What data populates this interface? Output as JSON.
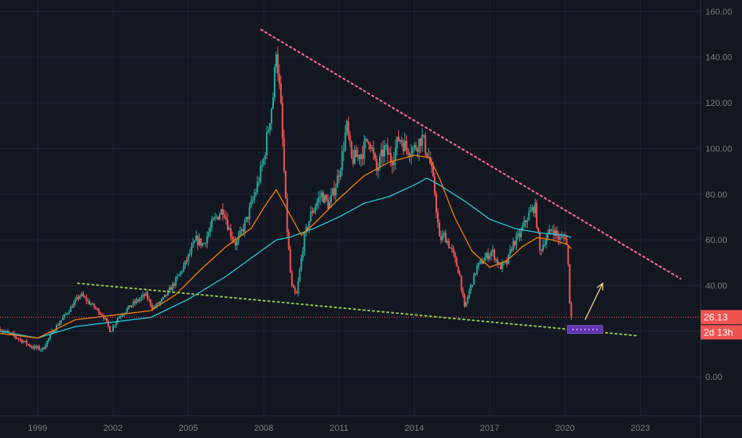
{
  "chart_data": {
    "type": "candlestick",
    "title": "",
    "xlabel": "",
    "ylabel": "",
    "ylim": [
      -17,
      165
    ],
    "xlim": [
      1997.5,
      2025.4
    ],
    "y_ticks": [
      "160.00",
      "140.00",
      "120.00",
      "100.00",
      "80.00",
      "60.00",
      "40.00",
      "0.00"
    ],
    "y_tick_values": [
      160,
      140,
      120,
      100,
      80,
      60,
      40,
      0
    ],
    "x_ticks": [
      "1999",
      "2002",
      "2005",
      "2008",
      "2011",
      "2014",
      "2017",
      "2020",
      "2023"
    ],
    "x_tick_values": [
      1999,
      2002,
      2005,
      2008,
      2011,
      2014,
      2017,
      2020,
      2023
    ],
    "grid": true,
    "last_price": "26.13",
    "countdown": "2d 13h",
    "colors": {
      "background": "#131722",
      "up": "#26a69a",
      "down": "#ef5350",
      "ma_fast": "#f57c00",
      "ma_slow": "#26c6da",
      "resistance": "#f06292",
      "support": "#8bc34a",
      "price_line": "#ef5350",
      "arrow": "#ffe082",
      "box": "#5e35b1"
    },
    "price_path": [
      [
        1997.5,
        21
      ],
      [
        1998.2,
        17
      ],
      [
        1998.8,
        13
      ],
      [
        1999.2,
        12
      ],
      [
        1999.6,
        20
      ],
      [
        2000.3,
        30
      ],
      [
        2000.7,
        36
      ],
      [
        2001.2,
        31
      ],
      [
        2001.6,
        27
      ],
      [
        2001.9,
        20
      ],
      [
        2002.2,
        26
      ],
      [
        2002.8,
        32
      ],
      [
        2003.3,
        36
      ],
      [
        2003.6,
        30
      ],
      [
        2004.0,
        34
      ],
      [
        2004.5,
        42
      ],
      [
        2004.9,
        50
      ],
      [
        2005.3,
        60
      ],
      [
        2005.6,
        58
      ],
      [
        2006.0,
        68
      ],
      [
        2006.4,
        74
      ],
      [
        2006.6,
        65
      ],
      [
        2006.9,
        58
      ],
      [
        2007.3,
        68
      ],
      [
        2007.7,
        82
      ],
      [
        2008.0,
        95
      ],
      [
        2008.2,
        110
      ],
      [
        2008.4,
        125
      ],
      [
        2008.5,
        145
      ],
      [
        2008.7,
        115
      ],
      [
        2008.9,
        70
      ],
      [
        2009.1,
        40
      ],
      [
        2009.3,
        35
      ],
      [
        2009.6,
        60
      ],
      [
        2009.9,
        72
      ],
      [
        2010.3,
        80
      ],
      [
        2010.6,
        75
      ],
      [
        2010.9,
        85
      ],
      [
        2011.1,
        95
      ],
      [
        2011.3,
        110
      ],
      [
        2011.5,
        95
      ],
      [
        2011.9,
        98
      ],
      [
        2012.2,
        105
      ],
      [
        2012.5,
        90
      ],
      [
        2012.8,
        100
      ],
      [
        2013.1,
        95
      ],
      [
        2013.4,
        105
      ],
      [
        2013.7,
        100
      ],
      [
        2014.0,
        100
      ],
      [
        2014.3,
        105
      ],
      [
        2014.6,
        95
      ],
      [
        2014.8,
        82
      ],
      [
        2015.0,
        60
      ],
      [
        2015.2,
        62
      ],
      [
        2015.5,
        55
      ],
      [
        2015.8,
        45
      ],
      [
        2016.0,
        30
      ],
      [
        2016.2,
        38
      ],
      [
        2016.5,
        48
      ],
      [
        2016.8,
        52
      ],
      [
        2017.1,
        55
      ],
      [
        2017.4,
        48
      ],
      [
        2017.7,
        50
      ],
      [
        2017.9,
        58
      ],
      [
        2018.2,
        62
      ],
      [
        2018.5,
        70
      ],
      [
        2018.8,
        75
      ],
      [
        2019.0,
        55
      ],
      [
        2019.2,
        60
      ],
      [
        2019.5,
        65
      ],
      [
        2019.8,
        60
      ],
      [
        2020.0,
        62
      ],
      [
        2020.1,
        55
      ],
      [
        2020.2,
        30
      ],
      [
        2020.25,
        26
      ]
    ],
    "ma_fast_path": [
      [
        1997.5,
        19
      ],
      [
        1999.0,
        17
      ],
      [
        2000.5,
        25
      ],
      [
        2002.0,
        27
      ],
      [
        2003.5,
        29
      ],
      [
        2004.5,
        36
      ],
      [
        2005.5,
        47
      ],
      [
        2006.5,
        57
      ],
      [
        2007.5,
        65
      ],
      [
        2008.0,
        74
      ],
      [
        2008.5,
        82
      ],
      [
        2009.0,
        72
      ],
      [
        2009.5,
        62
      ],
      [
        2010.0,
        67
      ],
      [
        2011.0,
        78
      ],
      [
        2012.0,
        88
      ],
      [
        2013.0,
        94
      ],
      [
        2014.0,
        97
      ],
      [
        2014.6,
        96
      ],
      [
        2015.0,
        87
      ],
      [
        2015.6,
        70
      ],
      [
        2016.3,
        55
      ],
      [
        2017.0,
        48
      ],
      [
        2017.7,
        51
      ],
      [
        2018.3,
        57
      ],
      [
        2018.9,
        61
      ],
      [
        2019.5,
        60
      ],
      [
        2020.1,
        58
      ],
      [
        2020.25,
        56
      ]
    ],
    "ma_slow_path": [
      [
        1997.5,
        20
      ],
      [
        1999.0,
        17
      ],
      [
        2000.5,
        22
      ],
      [
        2002.0,
        24
      ],
      [
        2003.5,
        26
      ],
      [
        2005.0,
        34
      ],
      [
        2006.5,
        44
      ],
      [
        2007.5,
        52
      ],
      [
        2008.5,
        60
      ],
      [
        2009.0,
        61
      ],
      [
        2010.0,
        65
      ],
      [
        2011.0,
        70
      ],
      [
        2012.0,
        76
      ],
      [
        2013.0,
        79
      ],
      [
        2014.0,
        84
      ],
      [
        2014.5,
        87
      ],
      [
        2015.0,
        84
      ],
      [
        2016.0,
        77
      ],
      [
        2017.0,
        69
      ],
      [
        2018.0,
        65
      ],
      [
        2019.0,
        63
      ],
      [
        2020.0,
        62
      ],
      [
        2020.25,
        61
      ]
    ],
    "resistance_line": [
      [
        2007.9,
        152
      ],
      [
        2024.6,
        43
      ]
    ],
    "support_line": [
      [
        2000.6,
        41
      ],
      [
        2022.9,
        18
      ]
    ],
    "price_level": 26.13,
    "projection_arrow": [
      [
        2020.8,
        25
      ],
      [
        2021.5,
        41
      ]
    ],
    "target_box": [
      [
        2020.1,
        22.5
      ],
      [
        2021.5,
        19
      ]
    ]
  }
}
